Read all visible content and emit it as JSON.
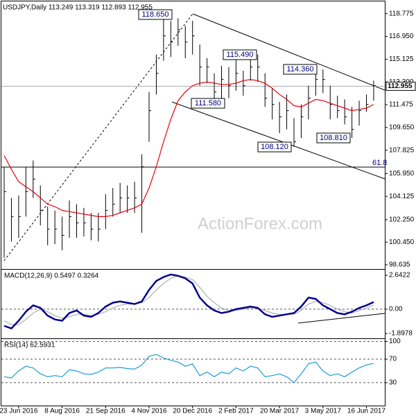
{
  "chart_data": [
    {
      "type": "ohlc",
      "title": "USDJPY,Daily 113.249 113.319 112.893 112.955",
      "categories": [
        null,
        null,
        "23 Jun 2016",
        null,
        null,
        null,
        null,
        null,
        "8 Aug 2016",
        null,
        null,
        null,
        null,
        null,
        "21 Sep 2016",
        null,
        null,
        null,
        null,
        null,
        "4 Nov 2016",
        null,
        null,
        null,
        null,
        null,
        "20 Dec 2016",
        null,
        null,
        null,
        null,
        null,
        "2 Feb 2017",
        null,
        null,
        null,
        null,
        null,
        "20 Mar 2017",
        null,
        null,
        null,
        null,
        null,
        "3 May 2017",
        null,
        null,
        null,
        null,
        null,
        "16 Jun 2017",
        null
      ],
      "high": [
        106.5,
        104,
        104.2,
        106.5,
        107,
        105,
        103.3,
        103,
        102.5,
        103.8,
        103.5,
        103.2,
        102.8,
        102.8,
        104.3,
        104.8,
        105.2,
        105,
        105.3,
        107.5,
        112.5,
        115.5,
        118.6,
        118.2,
        118.4,
        117.8,
        118.2,
        116.3,
        115.2,
        114,
        114.6,
        114.5,
        115.5,
        114.2,
        115.3,
        115.5,
        114,
        112.8,
        111.7,
        112.3,
        110.4,
        111.5,
        113,
        114.2,
        114.3,
        113,
        112.2,
        111.9,
        111.3,
        111.8,
        112.3,
        113.4
      ],
      "low": [
        99.2,
        100.5,
        100.8,
        102.5,
        104,
        101.8,
        100.2,
        100.3,
        99.8,
        100.8,
        100.8,
        100.9,
        100.6,
        100.5,
        101.5,
        102.5,
        102.8,
        102.8,
        102.8,
        101.2,
        108.5,
        112.3,
        115,
        115.3,
        116.2,
        115.2,
        115.5,
        113,
        113.2,
        111.6,
        111.8,
        112,
        112.6,
        112.2,
        113.4,
        113.3,
        111.3,
        110.3,
        109.2,
        109.5,
        108.1,
        108.8,
        110.3,
        112.2,
        112.4,
        110.3,
        110.4,
        109.9,
        108.8,
        109.8,
        110.9,
        111.8
      ],
      "close": [
        104.5,
        102.5,
        102.5,
        104.5,
        105.5,
        103,
        101.5,
        101.5,
        101,
        102.5,
        102,
        102,
        101.5,
        101.5,
        103,
        103.5,
        104,
        104,
        104,
        106.5,
        111,
        114,
        117,
        116.5,
        117.5,
        116.5,
        117,
        114.5,
        114.5,
        112.5,
        113.5,
        113,
        114,
        113,
        114.5,
        114.5,
        112,
        111.5,
        110.5,
        111,
        108.5,
        110.5,
        112,
        113.5,
        113.5,
        111.5,
        111,
        110.5,
        109.5,
        111,
        111.5,
        113
      ],
      "color": "#000000",
      "moving_average": {
        "color": "#e8000b",
        "values": [
          107.4,
          106.3,
          105.3,
          104.9,
          104.5,
          104,
          103.5,
          103.3,
          103,
          102.9,
          102.8,
          102.7,
          102.6,
          102.5,
          102.5,
          102.6,
          102.8,
          103,
          103.2,
          103.5,
          104.8,
          106.5,
          108.5,
          110.3,
          111.8,
          112.5,
          113,
          113.2,
          113.3,
          113.2,
          113.1,
          113.1,
          113.2,
          113.4,
          113.5,
          113.4,
          113.2,
          112.8,
          112.3,
          111.9,
          111.4,
          111.3,
          111.6,
          111.9,
          111.8,
          111.6,
          111.4,
          111.2,
          111,
          111.1,
          111.2,
          111.5
        ]
      },
      "ylim": [
        98.52,
        119.65
      ],
      "yticks": [
        118.775,
        {
          "value": 116.95,
          "label": "116.950"
        },
        115.125,
        {
          "value": 113.3,
          "label": "113.300"
        },
        111.475,
        {
          "value": 109.65,
          "label": "109.650"
        },
        107.825,
        {
          "value": 105.95,
          "label": "105.950"
        },
        104.125,
        {
          "value": 102.25,
          "label": "102.250"
        },
        {
          "value": 100.45,
          "label": "100.450"
        },
        98.635
      ],
      "last": {
        "value": 112.955,
        "label": "112.955"
      },
      "annotations": [
        "118.650",
        "115.490",
        "114.360",
        "111.580",
        "108.120",
        "108.810",
        "61.8"
      ],
      "watermark": "ActionForex.com"
    },
    {
      "type": "line",
      "title": "MACD(12,26,9) 0.5497 0.3264",
      "series": [
        {
          "color": "#00008b",
          "values": [
            -1.3,
            -1.5,
            -0.9,
            -0.2,
            0.3,
            0.1,
            -0.5,
            -0.8,
            -0.9,
            -0.3,
            -0.1,
            -0.5,
            -0.6,
            -0.3,
            0.2,
            0.5,
            0.6,
            0.5,
            0.4,
            0.6,
            1.5,
            2.2,
            2.5,
            2.7,
            2.6,
            2.4,
            2.0,
            0.9,
            0.3,
            -0.1,
            -0.3,
            -0.2,
            0.0,
            0.1,
            0.2,
            0.1,
            -0.4,
            -0.6,
            -0.5,
            -0.4,
            -0.3,
            0.2,
            0.9,
            0.8,
            0.3,
            0.0,
            -0.3,
            -0.4,
            -0.2,
            0.1,
            0.3,
            0.55
          ]
        },
        {
          "color": "#b0b0b0",
          "values": [
            -0.9,
            -1.2,
            -1.2,
            -0.8,
            -0.3,
            0,
            -0.2,
            -0.5,
            -0.7,
            -0.6,
            -0.4,
            -0.4,
            -0.5,
            -0.4,
            -0.2,
            0.1,
            0.3,
            0.4,
            0.4,
            0.5,
            0.9,
            1.5,
            2.0,
            2.4,
            2.6,
            2.5,
            2.3,
            1.7,
            1.0,
            0.5,
            0.1,
            -0.1,
            -0.1,
            0,
            0.1,
            0.1,
            -0.1,
            -0.3,
            -0.4,
            -0.4,
            -0.4,
            -0.1,
            0.4,
            0.6,
            0.5,
            0.3,
            0,
            -0.2,
            -0.3,
            -0.1,
            0.1,
            0.33
          ]
        }
      ],
      "ylim": [
        -2.22,
        3.02
      ],
      "yticks": [
        2.6422,
        {
          "value": 0,
          "label": "0.00"
        },
        -1.8978
      ]
    },
    {
      "type": "line",
      "title": "RSI(14) 62.5931",
      "series": [
        {
          "color": "#1f9bd7",
          "values": [
            40,
            38,
            50,
            58,
            55,
            45,
            40,
            42,
            40,
            52,
            50,
            45,
            44,
            48,
            55,
            55,
            56,
            54,
            53,
            60,
            75,
            78,
            72,
            68,
            65,
            58,
            62,
            42,
            48,
            40,
            48,
            45,
            55,
            50,
            58,
            55,
            40,
            42,
            45,
            40,
            30,
            45,
            62,
            65,
            50,
            42,
            45,
            40,
            48,
            55,
            60,
            63
          ]
        }
      ],
      "ylim": [
        -9,
        103
      ],
      "yticks": [
        100,
        70,
        30
      ]
    }
  ]
}
